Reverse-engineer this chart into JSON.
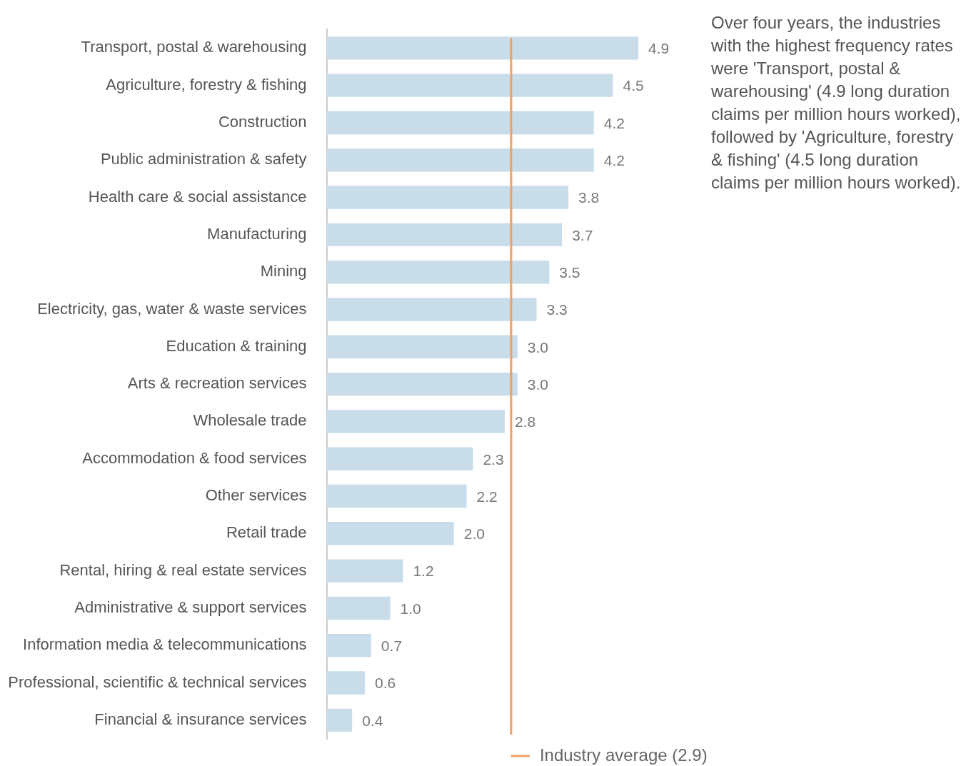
{
  "chart_data": {
    "type": "bar",
    "orientation": "horizontal",
    "categories": [
      "Transport, postal & warehousing",
      "Agriculture, forestry & fishing",
      "Construction",
      "Public administration & safety",
      "Health care & social assistance",
      "Manufacturing",
      "Mining",
      "Electricity, gas, water & waste services",
      "Education & training",
      "Arts & recreation services",
      "Wholesale trade",
      "Accommodation & food services",
      "Other services",
      "Retail trade",
      "Rental, hiring & real estate services",
      "Administrative & support services",
      "Information media & telecommunications",
      "Professional, scientific & technical services",
      "Financial & insurance services"
    ],
    "values": [
      4.9,
      4.5,
      4.2,
      4.2,
      3.8,
      3.7,
      3.5,
      3.3,
      3.0,
      3.0,
      2.8,
      2.3,
      2.2,
      2.0,
      1.2,
      1.0,
      0.7,
      0.6,
      0.4
    ],
    "value_labels": [
      "4.9",
      "4.5",
      "4.2",
      "4.2",
      "3.8",
      "3.7",
      "3.5",
      "3.3",
      "3.0",
      "3.0",
      "2.8",
      "2.3",
      "2.2",
      "2.0",
      "1.2",
      "1.0",
      "0.7",
      "0.6",
      "0.4"
    ],
    "color": "#c9dcea",
    "ref_lines": [
      {
        "axis": "x",
        "value": 2.9,
        "label": "Industry average (2.9)",
        "color": "#f0a060"
      }
    ],
    "tick_labels": "y",
    "legend": "bottom",
    "annotations": [
      "Over four years, the industries with the highest frequency rates were 'Transport, postal & warehousing' (4.9 long duration claims per million hours worked), followed by 'Agriculture, forestry & fishing' (4.5 long duration claims per million hours worked)."
    ]
  }
}
